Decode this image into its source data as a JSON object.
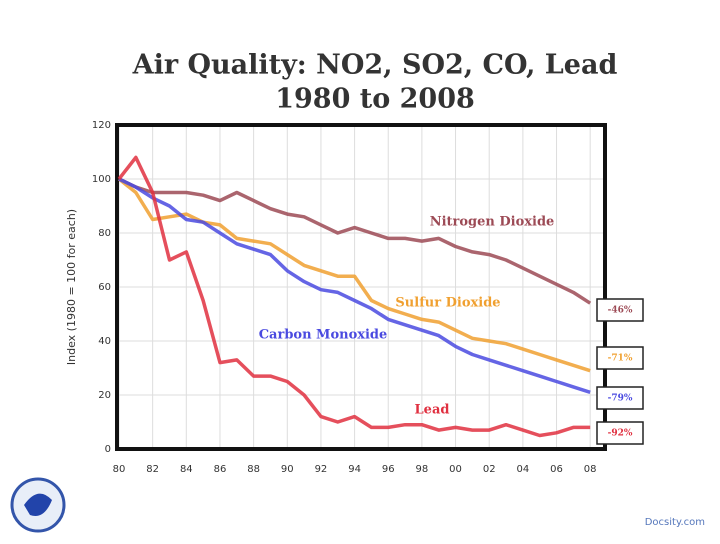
{
  "chart_data": {
    "type": "line",
    "title": "Air Quality: NO2, SO2, CO, Lead",
    "subtitle": "1980 to 2008",
    "y_label": "Index (1980 = 100 for each)",
    "footer": "Docsity.com",
    "x": [
      1980,
      1981,
      1982,
      1983,
      1984,
      1985,
      1986,
      1987,
      1988,
      1989,
      1990,
      1991,
      1992,
      1993,
      1994,
      1995,
      1996,
      1997,
      1998,
      1999,
      2000,
      2001,
      2002,
      2003,
      2004,
      2005,
      2006,
      2007,
      2008
    ],
    "xlim": [
      1980,
      2009
    ],
    "xticks": [
      {
        "value": 1980,
        "label": "80"
      },
      {
        "value": 1982,
        "label": "82"
      },
      {
        "value": 1984,
        "label": "84"
      },
      {
        "value": 1986,
        "label": "86"
      },
      {
        "value": 1988,
        "label": "88"
      },
      {
        "value": 1990,
        "label": "90"
      },
      {
        "value": 1992,
        "label": "92"
      },
      {
        "value": 1994,
        "label": "94"
      },
      {
        "value": 1996,
        "label": "96"
      },
      {
        "value": 1998,
        "label": "98"
      },
      {
        "value": 2000,
        "label": "00"
      },
      {
        "value": 2002,
        "label": "02"
      },
      {
        "value": 2004,
        "label": "04"
      },
      {
        "value": 2006,
        "label": "06"
      },
      {
        "value": 2008,
        "label": "08"
      }
    ],
    "ylim": [
      0,
      120
    ],
    "yticks": [
      0,
      20,
      40,
      60,
      80,
      100,
      120
    ],
    "grid": true,
    "series": [
      {
        "name": "Nitrogen Dioxide",
        "color": "#9c4a55",
        "end_label": "-46%",
        "values": [
          100,
          97,
          95,
          95,
          95,
          94,
          92,
          95,
          92,
          89,
          87,
          86,
          83,
          80,
          82,
          80,
          78,
          78,
          77,
          78,
          75,
          73,
          72,
          70,
          67,
          64,
          61,
          58,
          54
        ]
      },
      {
        "name": "Sulfur Dioxide",
        "color": "#f0a030",
        "end_label": "-71%",
        "values": [
          100,
          95,
          85,
          86,
          87,
          84,
          83,
          78,
          77,
          76,
          72,
          68,
          66,
          64,
          64,
          55,
          52,
          50,
          48,
          47,
          44,
          41,
          40,
          39,
          37,
          35,
          33,
          31,
          29
        ]
      },
      {
        "name": "Carbon Monoxide",
        "color": "#4a4ae0",
        "end_label": "-79%",
        "values": [
          100,
          97,
          93,
          90,
          85,
          84,
          80,
          76,
          74,
          72,
          66,
          62,
          59,
          58,
          55,
          52,
          48,
          46,
          44,
          42,
          38,
          35,
          33,
          31,
          29,
          27,
          25,
          23,
          21
        ]
      },
      {
        "name": "Lead",
        "color": "#e03040",
        "end_label": "-92%",
        "values": [
          100,
          108,
          95,
          70,
          73,
          55,
          32,
          33,
          27,
          27,
          25,
          20,
          12,
          10,
          12,
          8,
          8,
          9,
          9,
          7,
          8,
          7,
          7,
          9,
          7,
          5,
          6,
          8,
          8
        ]
      }
    ]
  }
}
